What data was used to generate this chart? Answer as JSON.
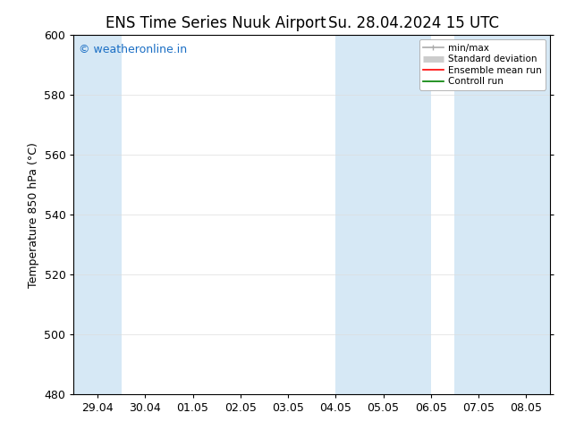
{
  "title_left": "ENS Time Series Nuuk Airport",
  "title_right": "Su. 28.04.2024 15 UTC",
  "ylabel": "Temperature 850 hPa (°C)",
  "ylim": [
    480,
    600
  ],
  "yticks": [
    480,
    500,
    520,
    540,
    560,
    580,
    600
  ],
  "x_labels": [
    "29.04",
    "30.04",
    "01.05",
    "02.05",
    "03.05",
    "04.05",
    "05.05",
    "06.05",
    "07.05",
    "08.05"
  ],
  "x_positions": [
    0,
    1,
    2,
    3,
    4,
    5,
    6,
    7,
    8,
    9
  ],
  "shaded_bands": [
    {
      "x_start": -0.5,
      "x_end": 0.5
    },
    {
      "x_start": 5.0,
      "x_end": 7.0
    },
    {
      "x_start": 7.5,
      "x_end": 9.5
    }
  ],
  "shade_color": "#d6e8f5",
  "watermark_text": "© weatheronline.in",
  "watermark_color": "#1a6ec4",
  "legend_items": [
    {
      "label": "min/max",
      "color": "#aaaaaa",
      "lw": 1.2
    },
    {
      "label": "Standard deviation",
      "color": "#cccccc",
      "lw": 5
    },
    {
      "label": "Ensemble mean run",
      "color": "red",
      "lw": 1.2
    },
    {
      "label": "Controll run",
      "color": "green",
      "lw": 1.2
    }
  ],
  "background_color": "#ffffff",
  "spine_color": "#000000",
  "tick_fontsize": 9,
  "watermark_fontsize": 9,
  "x_range": [
    -0.5,
    9.5
  ]
}
